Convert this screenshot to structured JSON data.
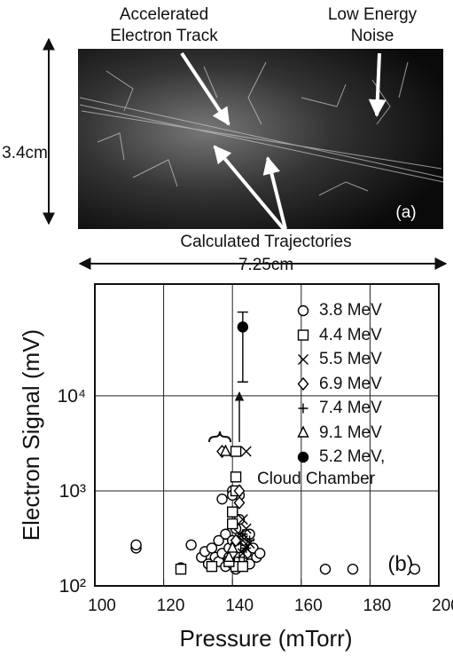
{
  "panel_a": {
    "track_label": [
      "Accelerated",
      "Electron Track"
    ],
    "noise_label": [
      "Low Energy",
      "Noise"
    ],
    "height_label": "3.4cm",
    "panel_label": "(a)",
    "trajectory_label": "Calculated Trajectories",
    "width_label": "7.25cm"
  },
  "chart_data": {
    "type": "scatter",
    "xlabel": "Pressure (mTorr)",
    "ylabel": "Electron Signal (mV)",
    "panel_label": "(b)",
    "xlim": [
      100,
      200
    ],
    "xticks": [
      100,
      120,
      140,
      160,
      180,
      200
    ],
    "ylim": [
      100,
      150000
    ],
    "log_y": true,
    "yticks": [
      {
        "value": 100,
        "label": "10²"
      },
      {
        "value": 1000,
        "label": "10³"
      },
      {
        "value": 10000,
        "label": "10⁴"
      }
    ],
    "grid": true,
    "legend": "upper right",
    "series": [
      {
        "name": "3.8 MeV",
        "marker": "circle",
        "color": "#000000",
        "x": [
          112,
          112,
          125,
          128,
          131,
          132,
          133,
          134,
          135,
          136,
          136,
          137,
          137,
          138,
          138,
          139,
          139,
          140,
          140,
          140,
          140,
          141,
          141,
          142,
          142,
          143,
          143,
          144,
          145,
          145,
          146,
          147,
          148,
          141,
          167,
          175,
          193,
          140,
          142
        ],
        "values": [
          250,
          270,
          155,
          270,
          200,
          230,
          170,
          250,
          200,
          300,
          180,
          220,
          820,
          350,
          160,
          250,
          200,
          1000,
          600,
          300,
          170,
          400,
          250,
          900,
          200,
          300,
          180,
          220,
          350,
          170,
          250,
          200,
          220,
          150,
          150,
          150,
          150,
          900,
          500
        ]
      },
      {
        "name": "4.4 MeV",
        "marker": "square",
        "color": "#000000",
        "x": [
          141,
          141,
          141,
          140,
          140,
          141,
          142,
          141,
          134,
          125,
          143,
          139
        ],
        "values": [
          2600,
          1400,
          1000,
          600,
          450,
          250,
          200,
          160,
          160,
          150,
          160,
          180
        ]
      },
      {
        "name": "5.5 MeV",
        "marker": "x",
        "color": "#000000",
        "x": [
          144,
          143,
          144,
          143,
          145,
          144,
          143,
          142
        ],
        "values": [
          2600,
          500,
          400,
          300,
          280,
          250,
          220,
          350
        ]
      },
      {
        "name": "6.9 MeV",
        "marker": "diamond",
        "color": "#000000",
        "x": [
          137,
          142,
          142,
          140,
          141
        ],
        "values": [
          2600,
          1000,
          750,
          220,
          300
        ]
      },
      {
        "name": "7.4 MeV",
        "marker": "plus",
        "color": "#000000",
        "x": [
          143,
          144,
          142,
          145
        ],
        "values": [
          350,
          250,
          200,
          300
        ]
      },
      {
        "name": "9.1 MeV",
        "marker": "triangle",
        "color": "#000000",
        "x": [
          138,
          139,
          140
        ],
        "values": [
          2600,
          200,
          250
        ]
      },
      {
        "name": "5.2 MeV,\nCloud Chamber",
        "marker": "filled-circle",
        "color": "#000000",
        "x": [
          143
        ],
        "values": [
          53000
        ],
        "errors_minus": [
          39000
        ],
        "errors_plus": [
          23000
        ]
      }
    ]
  }
}
